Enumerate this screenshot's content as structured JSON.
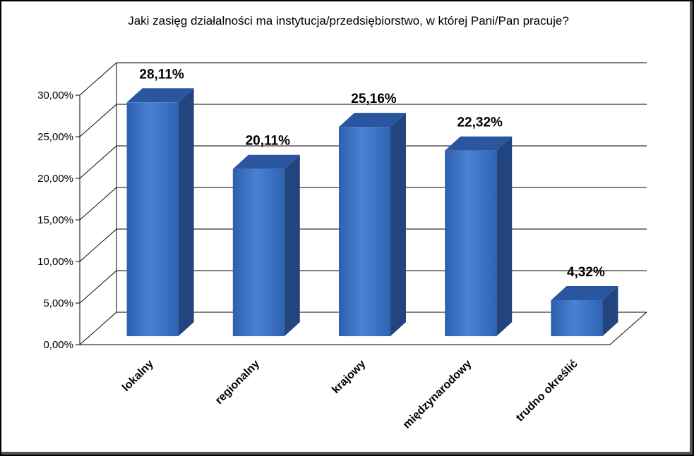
{
  "chart_data": {
    "type": "bar",
    "title": "Jaki zasięg działalności ma instytucja/przedsiębiorstwo, w której Pani/Pan pracuje?",
    "categories": [
      "lokalny",
      "regionalny",
      "krajowy",
      "międzynarodowy",
      "trudno określić"
    ],
    "values": [
      28.11,
      20.11,
      25.16,
      22.32,
      4.32
    ],
    "data_labels": [
      "28,11%",
      "20,11%",
      "25,16%",
      "22,32%",
      "4,32%"
    ],
    "y_ticks": [
      "0,00%",
      "5,00%",
      "10,00%",
      "15,00%",
      "20,00%",
      "25,00%",
      "30,00%"
    ],
    "ylim": [
      0,
      30
    ],
    "xlabel": "",
    "ylabel": "",
    "grid": true,
    "legend": "none",
    "style": "3d-column",
    "colors": {
      "bar_front": "#3a70c4",
      "bar_front_light": "#5b8fdc",
      "bar_side": "#22457f",
      "bar_top": "#2a56a0",
      "grid": "#000000",
      "floor": "#000000"
    }
  }
}
